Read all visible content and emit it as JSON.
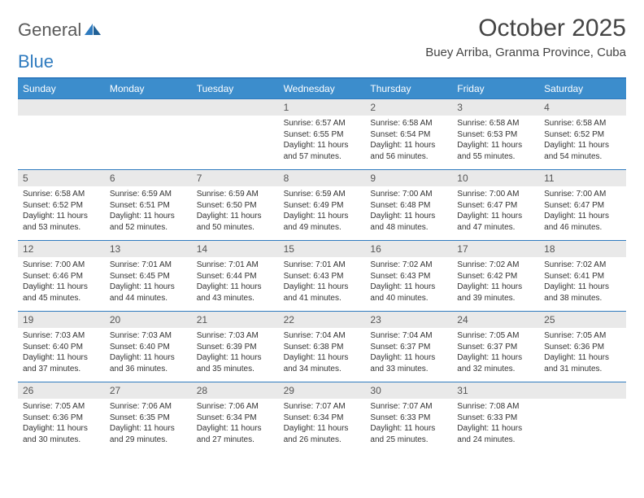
{
  "brand": {
    "word1": "General",
    "word2": "Blue"
  },
  "title": "October 2025",
  "location": "Buey Arriba, Granma Province, Cuba",
  "day_names": [
    "Sunday",
    "Monday",
    "Tuesday",
    "Wednesday",
    "Thursday",
    "Friday",
    "Saturday"
  ],
  "colors": {
    "header_bg": "#3c8dcc",
    "border": "#2f7bbf",
    "daynum_bg": "#e9e9e9",
    "text": "#333333"
  },
  "weeks": [
    [
      {
        "n": "",
        "sr": "",
        "ss": "",
        "dl": ""
      },
      {
        "n": "",
        "sr": "",
        "ss": "",
        "dl": ""
      },
      {
        "n": "",
        "sr": "",
        "ss": "",
        "dl": ""
      },
      {
        "n": "1",
        "sr": "Sunrise: 6:57 AM",
        "ss": "Sunset: 6:55 PM",
        "dl": "Daylight: 11 hours and 57 minutes."
      },
      {
        "n": "2",
        "sr": "Sunrise: 6:58 AM",
        "ss": "Sunset: 6:54 PM",
        "dl": "Daylight: 11 hours and 56 minutes."
      },
      {
        "n": "3",
        "sr": "Sunrise: 6:58 AM",
        "ss": "Sunset: 6:53 PM",
        "dl": "Daylight: 11 hours and 55 minutes."
      },
      {
        "n": "4",
        "sr": "Sunrise: 6:58 AM",
        "ss": "Sunset: 6:52 PM",
        "dl": "Daylight: 11 hours and 54 minutes."
      }
    ],
    [
      {
        "n": "5",
        "sr": "Sunrise: 6:58 AM",
        "ss": "Sunset: 6:52 PM",
        "dl": "Daylight: 11 hours and 53 minutes."
      },
      {
        "n": "6",
        "sr": "Sunrise: 6:59 AM",
        "ss": "Sunset: 6:51 PM",
        "dl": "Daylight: 11 hours and 52 minutes."
      },
      {
        "n": "7",
        "sr": "Sunrise: 6:59 AM",
        "ss": "Sunset: 6:50 PM",
        "dl": "Daylight: 11 hours and 50 minutes."
      },
      {
        "n": "8",
        "sr": "Sunrise: 6:59 AM",
        "ss": "Sunset: 6:49 PM",
        "dl": "Daylight: 11 hours and 49 minutes."
      },
      {
        "n": "9",
        "sr": "Sunrise: 7:00 AM",
        "ss": "Sunset: 6:48 PM",
        "dl": "Daylight: 11 hours and 48 minutes."
      },
      {
        "n": "10",
        "sr": "Sunrise: 7:00 AM",
        "ss": "Sunset: 6:47 PM",
        "dl": "Daylight: 11 hours and 47 minutes."
      },
      {
        "n": "11",
        "sr": "Sunrise: 7:00 AM",
        "ss": "Sunset: 6:47 PM",
        "dl": "Daylight: 11 hours and 46 minutes."
      }
    ],
    [
      {
        "n": "12",
        "sr": "Sunrise: 7:00 AM",
        "ss": "Sunset: 6:46 PM",
        "dl": "Daylight: 11 hours and 45 minutes."
      },
      {
        "n": "13",
        "sr": "Sunrise: 7:01 AM",
        "ss": "Sunset: 6:45 PM",
        "dl": "Daylight: 11 hours and 44 minutes."
      },
      {
        "n": "14",
        "sr": "Sunrise: 7:01 AM",
        "ss": "Sunset: 6:44 PM",
        "dl": "Daylight: 11 hours and 43 minutes."
      },
      {
        "n": "15",
        "sr": "Sunrise: 7:01 AM",
        "ss": "Sunset: 6:43 PM",
        "dl": "Daylight: 11 hours and 41 minutes."
      },
      {
        "n": "16",
        "sr": "Sunrise: 7:02 AM",
        "ss": "Sunset: 6:43 PM",
        "dl": "Daylight: 11 hours and 40 minutes."
      },
      {
        "n": "17",
        "sr": "Sunrise: 7:02 AM",
        "ss": "Sunset: 6:42 PM",
        "dl": "Daylight: 11 hours and 39 minutes."
      },
      {
        "n": "18",
        "sr": "Sunrise: 7:02 AM",
        "ss": "Sunset: 6:41 PM",
        "dl": "Daylight: 11 hours and 38 minutes."
      }
    ],
    [
      {
        "n": "19",
        "sr": "Sunrise: 7:03 AM",
        "ss": "Sunset: 6:40 PM",
        "dl": "Daylight: 11 hours and 37 minutes."
      },
      {
        "n": "20",
        "sr": "Sunrise: 7:03 AM",
        "ss": "Sunset: 6:40 PM",
        "dl": "Daylight: 11 hours and 36 minutes."
      },
      {
        "n": "21",
        "sr": "Sunrise: 7:03 AM",
        "ss": "Sunset: 6:39 PM",
        "dl": "Daylight: 11 hours and 35 minutes."
      },
      {
        "n": "22",
        "sr": "Sunrise: 7:04 AM",
        "ss": "Sunset: 6:38 PM",
        "dl": "Daylight: 11 hours and 34 minutes."
      },
      {
        "n": "23",
        "sr": "Sunrise: 7:04 AM",
        "ss": "Sunset: 6:37 PM",
        "dl": "Daylight: 11 hours and 33 minutes."
      },
      {
        "n": "24",
        "sr": "Sunrise: 7:05 AM",
        "ss": "Sunset: 6:37 PM",
        "dl": "Daylight: 11 hours and 32 minutes."
      },
      {
        "n": "25",
        "sr": "Sunrise: 7:05 AM",
        "ss": "Sunset: 6:36 PM",
        "dl": "Daylight: 11 hours and 31 minutes."
      }
    ],
    [
      {
        "n": "26",
        "sr": "Sunrise: 7:05 AM",
        "ss": "Sunset: 6:36 PM",
        "dl": "Daylight: 11 hours and 30 minutes."
      },
      {
        "n": "27",
        "sr": "Sunrise: 7:06 AM",
        "ss": "Sunset: 6:35 PM",
        "dl": "Daylight: 11 hours and 29 minutes."
      },
      {
        "n": "28",
        "sr": "Sunrise: 7:06 AM",
        "ss": "Sunset: 6:34 PM",
        "dl": "Daylight: 11 hours and 27 minutes."
      },
      {
        "n": "29",
        "sr": "Sunrise: 7:07 AM",
        "ss": "Sunset: 6:34 PM",
        "dl": "Daylight: 11 hours and 26 minutes."
      },
      {
        "n": "30",
        "sr": "Sunrise: 7:07 AM",
        "ss": "Sunset: 6:33 PM",
        "dl": "Daylight: 11 hours and 25 minutes."
      },
      {
        "n": "31",
        "sr": "Sunrise: 7:08 AM",
        "ss": "Sunset: 6:33 PM",
        "dl": "Daylight: 11 hours and 24 minutes."
      },
      {
        "n": "",
        "sr": "",
        "ss": "",
        "dl": ""
      }
    ]
  ]
}
